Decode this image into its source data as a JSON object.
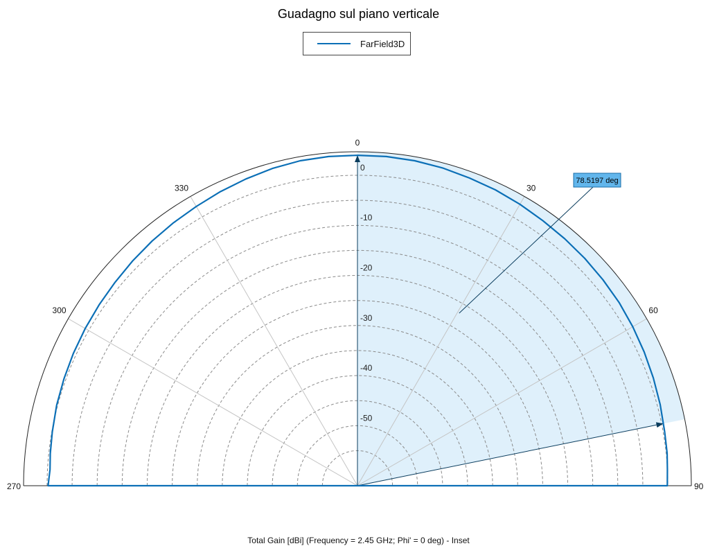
{
  "chart_data": {
    "type": "polar-line",
    "title": "Guadagno sul piano verticale",
    "subtitle": "Total Gain [dBi] (Frequency = 2.45 GHz; Phi' = 0 deg) - Inset",
    "legend": {
      "placement": "top-center",
      "entries": [
        "FarField3D"
      ]
    },
    "angular_ticks": [
      "0",
      "30",
      "60",
      "90",
      "270",
      "300",
      "330"
    ],
    "radial_ticks": [
      "0",
      "-10",
      "-20",
      "-30",
      "-40",
      "-50"
    ],
    "radial_tick_values": [
      0,
      -10,
      -20,
      -30,
      -40,
      -50
    ],
    "r_range": [
      -62,
      4.7
    ],
    "theta_range": [
      -90,
      90
    ],
    "grid": true,
    "colors": {
      "series": "#0b6fb6",
      "fill": "#dff0fb",
      "marker_bg": "#62b6ec"
    },
    "series": [
      {
        "name": "FarField3D",
        "theta": [
          -90,
          -87,
          -84,
          -80,
          -75,
          -70,
          -65,
          -60,
          -55,
          -50,
          -45,
          -40,
          -35,
          -30,
          -25,
          -20,
          -15,
          -10,
          -5,
          0,
          5,
          10,
          15,
          20,
          25,
          30,
          35,
          40,
          45,
          50,
          55,
          60,
          65,
          70,
          75,
          80,
          84,
          87,
          90
        ],
        "r": [
          -0.2,
          -0.5,
          -0.3,
          -0.1,
          0.2,
          0.4,
          0.6,
          0.8,
          1.0,
          1.2,
          1.5,
          1.8,
          2.1,
          2.4,
          2.8,
          3.2,
          3.6,
          3.9,
          4.0,
          4.0,
          4.0,
          3.9,
          3.7,
          3.4,
          3.2,
          2.9,
          2.6,
          2.4,
          2.2,
          2.0,
          1.8,
          1.5,
          1.2,
          0.9,
          0.6,
          0.3,
          0.2,
          0.0,
          -0.1
        ]
      }
    ],
    "shaded_region": {
      "theta_from": 0,
      "theta_to": 78.5197
    },
    "markers": [
      {
        "label": "78.5197 deg",
        "theta": 78.5197
      }
    ]
  }
}
